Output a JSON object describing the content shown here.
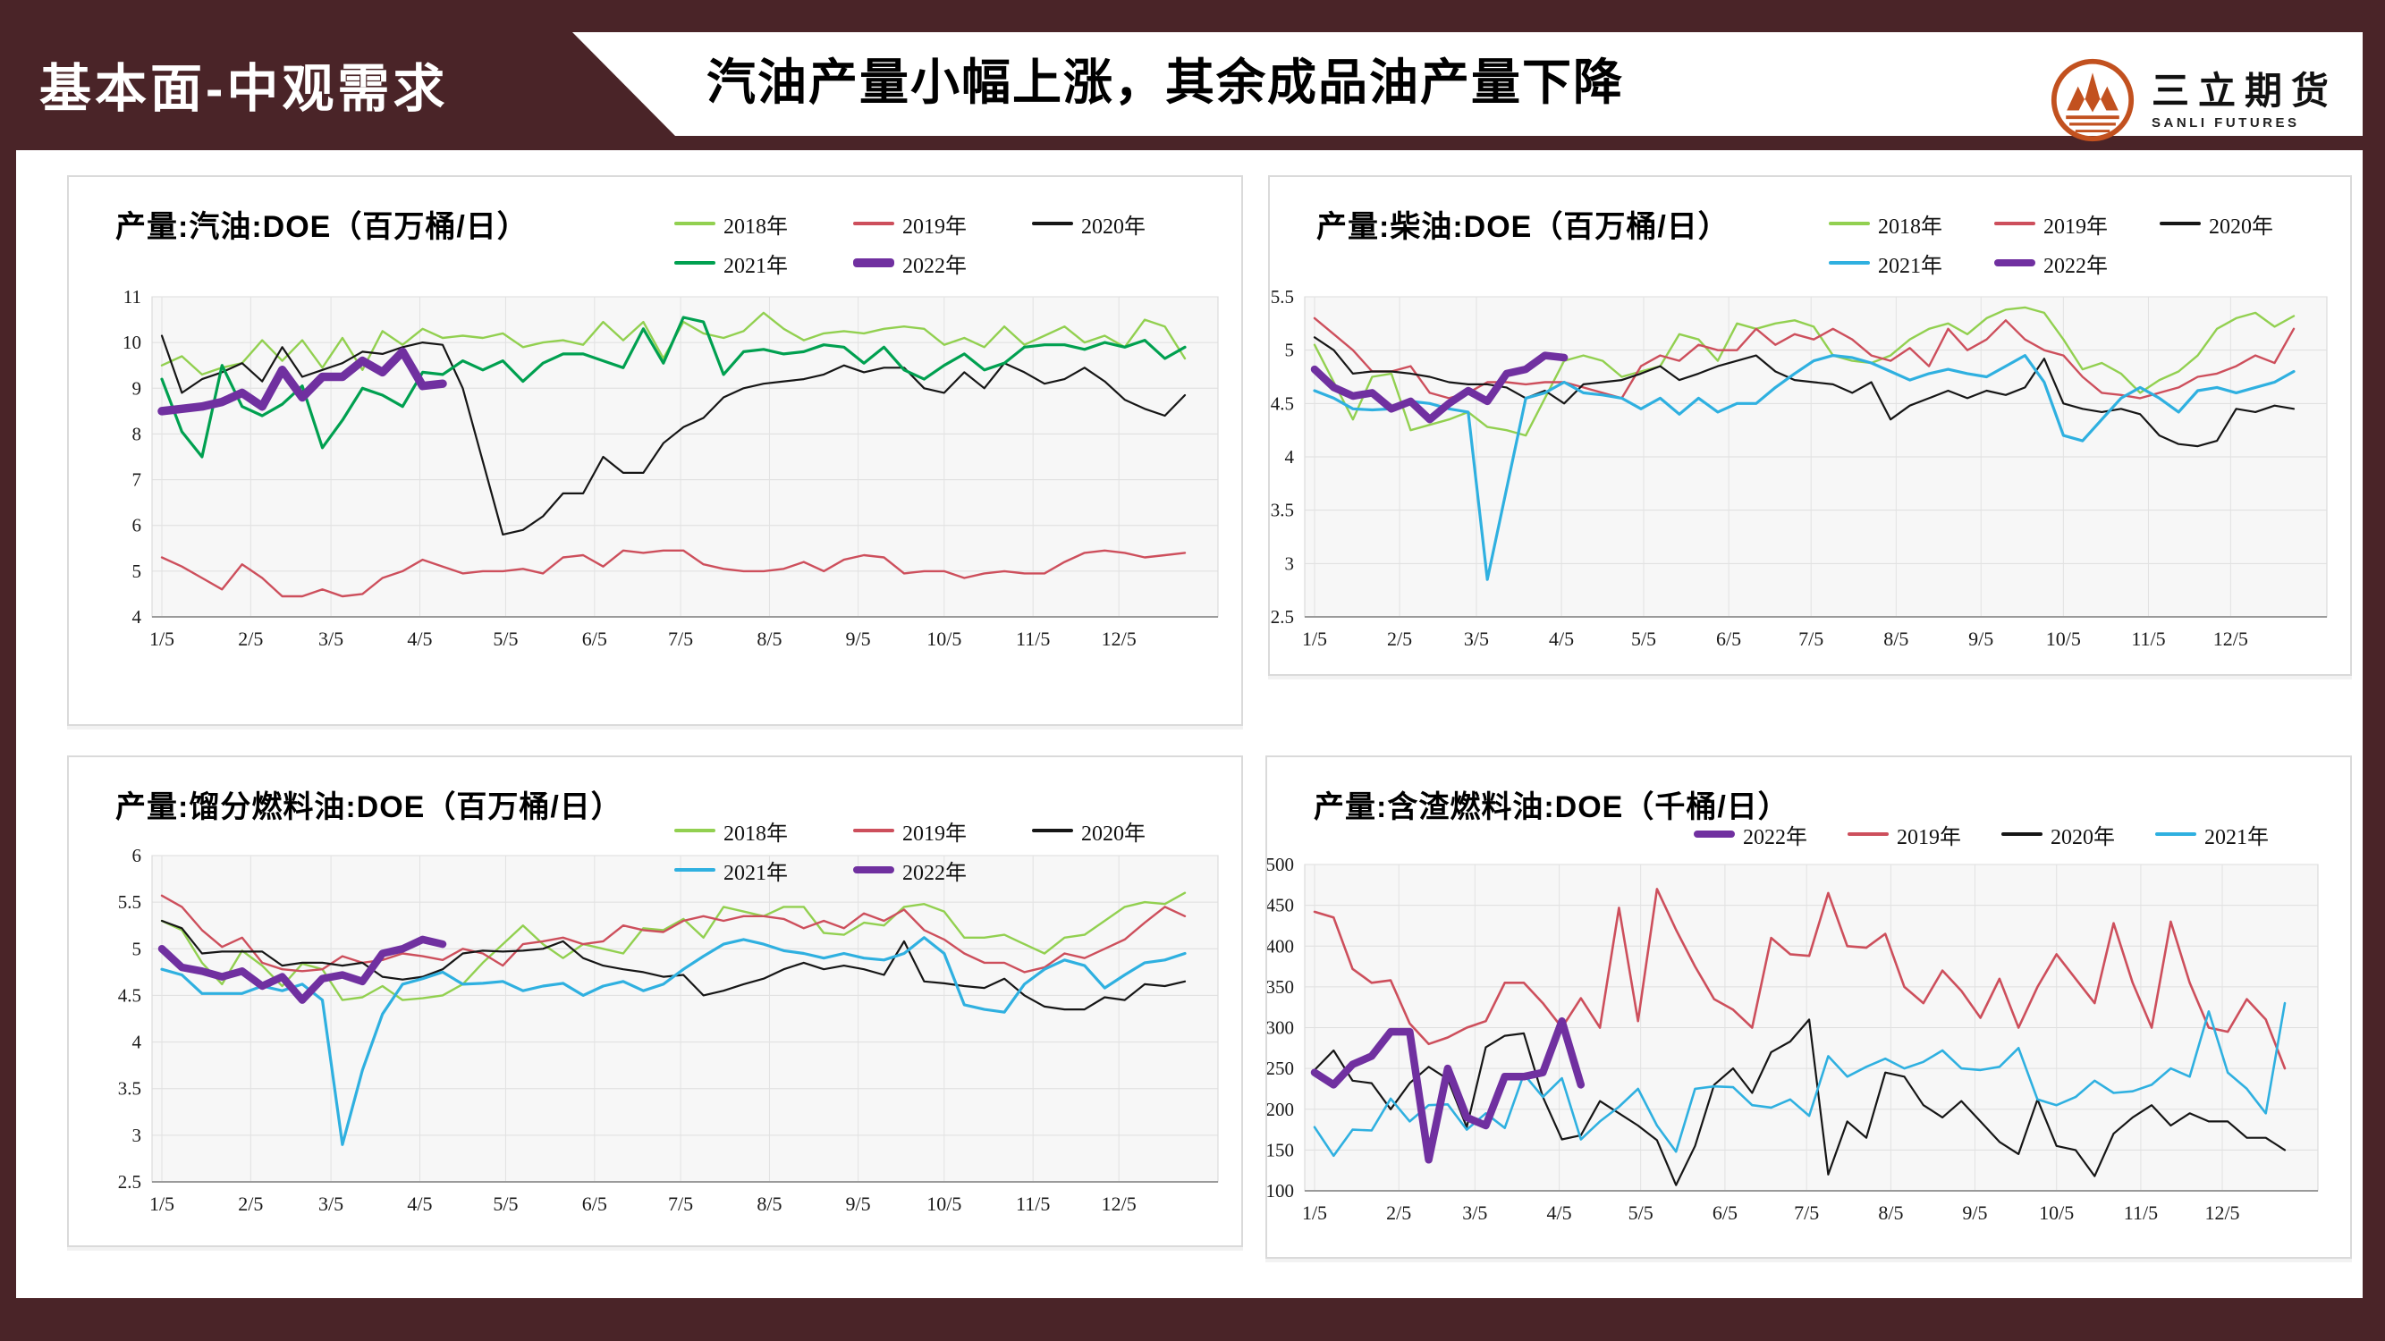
{
  "frame": {
    "color": "#4a2428"
  },
  "header": {
    "section_label": "基本面-中观需求",
    "title": "汽油产量小幅上涨，其余成品油产量下降",
    "logo": {
      "name_cn": "三立期货",
      "name_en": "SANLI FUTURES",
      "color": "#c2511f"
    }
  },
  "chart_data": [
    {
      "type": "line",
      "title": "产量:汽油:DOE（百万桶/日）",
      "y_min": 4,
      "y_max": 11,
      "y_step": 1,
      "grid": true,
      "legend_position": "top-right",
      "x_labels": [
        "1/5",
        "2/5",
        "3/5",
        "4/5",
        "5/5",
        "6/5",
        "7/5",
        "8/5",
        "9/5",
        "10/5",
        "11/5",
        "12/5"
      ],
      "legend_rows": [
        [
          "2018年",
          "2019年",
          "2020年"
        ],
        [
          "2021年",
          "2022年"
        ]
      ],
      "series": [
        {
          "name": "2018年",
          "color": "#92d050",
          "width": 2.4,
          "values": [
            9.5,
            9.7,
            9.3,
            9.45,
            9.55,
            10.05,
            9.6,
            10.05,
            9.45,
            10.1,
            9.4,
            10.25,
            9.95,
            10.3,
            10.1,
            10.15,
            10.1,
            10.2,
            9.9,
            10.0,
            10.05,
            9.95,
            10.45,
            10.05,
            10.45,
            9.65,
            10.45,
            10.2,
            10.1,
            10.25,
            10.65,
            10.3,
            10.05,
            10.2,
            10.25,
            10.2,
            10.3,
            10.35,
            10.3,
            9.95,
            10.1,
            9.9,
            10.35,
            9.95,
            10.15,
            10.35,
            10.0,
            10.15,
            9.9,
            10.5,
            10.35,
            9.65
          ]
        },
        {
          "name": "2019年",
          "color": "#cd4f5c",
          "width": 2.4,
          "values": [
            5.3,
            5.1,
            4.85,
            4.6,
            5.15,
            4.85,
            4.45,
            4.45,
            4.6,
            4.45,
            4.5,
            4.85,
            5.0,
            5.25,
            5.1,
            4.95,
            5.0,
            5.0,
            5.05,
            4.95,
            5.3,
            5.35,
            5.1,
            5.45,
            5.4,
            5.45,
            5.45,
            5.15,
            5.05,
            5.0,
            5.0,
            5.05,
            5.2,
            5.0,
            5.25,
            5.35,
            5.3,
            4.95,
            5.0,
            5.0,
            4.85,
            4.95,
            5.0,
            4.95,
            4.95,
            5.2,
            5.4,
            5.45,
            5.4,
            5.3,
            5.35,
            5.4
          ]
        },
        {
          "name": "2020年",
          "color": "#161616",
          "width": 2.2,
          "values": [
            10.15,
            8.9,
            9.2,
            9.35,
            9.55,
            9.15,
            9.9,
            9.25,
            9.4,
            9.55,
            9.8,
            9.75,
            9.9,
            10.0,
            9.95,
            9.0,
            7.4,
            5.8,
            5.9,
            6.2,
            6.7,
            6.7,
            7.5,
            7.15,
            7.15,
            7.8,
            8.15,
            8.35,
            8.8,
            9.0,
            9.1,
            9.15,
            9.2,
            9.3,
            9.5,
            9.35,
            9.45,
            9.45,
            9.0,
            8.9,
            9.35,
            9.0,
            9.55,
            9.35,
            9.1,
            9.2,
            9.45,
            9.15,
            8.75,
            8.55,
            8.4,
            8.85
          ]
        },
        {
          "name": "2021年",
          "color": "#00a050",
          "width": 3.2,
          "values": [
            9.2,
            8.05,
            7.5,
            9.5,
            8.6,
            8.4,
            8.65,
            9.05,
            7.7,
            8.3,
            9.0,
            8.85,
            8.6,
            9.35,
            9.3,
            9.6,
            9.4,
            9.6,
            9.15,
            9.55,
            9.75,
            9.75,
            9.6,
            9.45,
            10.3,
            9.55,
            10.55,
            10.45,
            9.3,
            9.8,
            9.85,
            9.75,
            9.8,
            9.95,
            9.9,
            9.55,
            9.9,
            9.4,
            9.2,
            9.5,
            9.75,
            9.4,
            9.55,
            9.9,
            9.95,
            9.95,
            9.85,
            10.0,
            9.9,
            10.05,
            9.65,
            9.9
          ]
        },
        {
          "name": "2022年",
          "color": "#7030a0",
          "width": 9.5,
          "values": [
            8.5,
            8.55,
            8.6,
            8.7,
            8.9,
            8.6,
            9.4,
            8.8,
            9.25,
            9.25,
            9.6,
            9.35,
            9.8,
            9.05,
            9.1
          ]
        }
      ]
    },
    {
      "type": "line",
      "title": "产量:柴油:DOE（百万桶/日）",
      "y_min": 2.5,
      "y_max": 5.5,
      "y_step": 0.5,
      "grid": true,
      "legend_position": "top-right",
      "x_labels": [
        "1/5",
        "2/5",
        "3/5",
        "4/5",
        "5/5",
        "6/5",
        "7/5",
        "8/5",
        "9/5",
        "10/5",
        "11/5",
        "12/5"
      ],
      "legend_rows": [
        [
          "2018年",
          "2019年",
          "2020年"
        ],
        [
          "2021年",
          "2022年"
        ]
      ],
      "series": [
        {
          "name": "2018年",
          "color": "#92d050",
          "width": 2.4,
          "values": [
            5.05,
            4.7,
            4.35,
            4.75,
            4.78,
            4.25,
            4.3,
            4.35,
            4.42,
            4.28,
            4.25,
            4.2,
            4.55,
            4.9,
            4.95,
            4.9,
            4.75,
            4.8,
            4.85,
            5.15,
            5.1,
            4.9,
            5.25,
            5.2,
            5.25,
            5.28,
            5.22,
            4.95,
            4.9,
            4.88,
            4.95,
            5.1,
            5.2,
            5.25,
            5.15,
            5.3,
            5.38,
            5.4,
            5.35,
            5.1,
            4.82,
            4.88,
            4.78,
            4.6,
            4.72,
            4.8,
            4.95,
            5.2,
            5.3,
            5.35,
            5.22,
            5.32
          ]
        },
        {
          "name": "2019年",
          "color": "#cd4f5c",
          "width": 2.4,
          "values": [
            5.3,
            5.15,
            5.0,
            4.8,
            4.8,
            4.85,
            4.6,
            4.55,
            4.6,
            4.7,
            4.7,
            4.68,
            4.7,
            4.7,
            4.65,
            4.6,
            4.55,
            4.85,
            4.95,
            4.9,
            5.05,
            5.0,
            5.0,
            5.2,
            5.05,
            5.15,
            5.1,
            5.2,
            5.1,
            4.95,
            4.9,
            5.02,
            4.85,
            5.2,
            5.0,
            5.1,
            5.28,
            5.1,
            5.0,
            4.95,
            4.75,
            4.6,
            4.58,
            4.55,
            4.6,
            4.65,
            4.75,
            4.78,
            4.85,
            4.95,
            4.88,
            5.2
          ]
        },
        {
          "name": "2020年",
          "color": "#161616",
          "width": 2.2,
          "values": [
            5.12,
            5.0,
            4.78,
            4.8,
            4.8,
            4.78,
            4.75,
            4.7,
            4.68,
            4.68,
            4.65,
            4.55,
            4.62,
            4.5,
            4.68,
            4.7,
            4.72,
            4.78,
            4.85,
            4.72,
            4.78,
            4.85,
            4.9,
            4.95,
            4.8,
            4.72,
            4.7,
            4.68,
            4.6,
            4.7,
            4.35,
            4.48,
            4.55,
            4.62,
            4.55,
            4.62,
            4.58,
            4.65,
            4.92,
            4.5,
            4.45,
            4.42,
            4.45,
            4.4,
            4.2,
            4.12,
            4.1,
            4.15,
            4.45,
            4.42,
            4.48,
            4.45
          ]
        },
        {
          "name": "2021年",
          "color": "#2fb0e0",
          "width": 3.2,
          "values": [
            4.62,
            4.55,
            4.45,
            4.44,
            4.45,
            4.52,
            4.5,
            4.45,
            4.42,
            2.85,
            3.7,
            4.55,
            4.6,
            4.7,
            4.6,
            4.58,
            4.55,
            4.45,
            4.55,
            4.4,
            4.55,
            4.42,
            4.5,
            4.5,
            4.65,
            4.78,
            4.9,
            4.95,
            4.93,
            4.88,
            4.8,
            4.72,
            4.78,
            4.82,
            4.78,
            4.75,
            4.85,
            4.95,
            4.7,
            4.2,
            4.15,
            4.35,
            4.55,
            4.65,
            4.55,
            4.42,
            4.62,
            4.65,
            4.6,
            4.65,
            4.7,
            4.8
          ]
        },
        {
          "name": "2022年",
          "color": "#7030a0",
          "width": 8.5,
          "values": [
            4.82,
            4.65,
            4.57,
            4.6,
            4.45,
            4.52,
            4.35,
            4.5,
            4.62,
            4.52,
            4.78,
            4.82,
            4.95,
            4.93
          ]
        }
      ]
    },
    {
      "type": "line",
      "title": "产量:馏分燃料油:DOE（百万桶/日）",
      "y_min": 2.5,
      "y_max": 6,
      "y_step": 0.5,
      "grid": true,
      "legend_position": "top-right",
      "x_labels": [
        "1/5",
        "2/5",
        "3/5",
        "4/5",
        "5/5",
        "6/5",
        "7/5",
        "8/5",
        "9/5",
        "10/5",
        "11/5",
        "12/5"
      ],
      "legend_rows": [
        [
          "2018年",
          "2019年",
          "2020年"
        ],
        [
          "2021年",
          "2022年"
        ]
      ],
      "series": [
        {
          "name": "2018年",
          "color": "#92d050",
          "width": 2.4,
          "values": [
            5.3,
            5.2,
            4.85,
            4.62,
            4.98,
            4.82,
            4.6,
            4.84,
            4.78,
            4.45,
            4.48,
            4.6,
            4.45,
            4.47,
            4.5,
            4.62,
            4.85,
            5.05,
            5.25,
            5.05,
            4.9,
            5.05,
            5.0,
            4.95,
            5.22,
            5.2,
            5.32,
            5.12,
            5.45,
            5.4,
            5.35,
            5.45,
            5.45,
            5.17,
            5.15,
            5.28,
            5.25,
            5.45,
            5.48,
            5.4,
            5.12,
            5.12,
            5.15,
            5.05,
            4.95,
            5.12,
            5.15,
            5.3,
            5.45,
            5.5,
            5.48,
            5.6
          ]
        },
        {
          "name": "2019年",
          "color": "#cd4f5c",
          "width": 2.4,
          "values": [
            5.57,
            5.45,
            5.2,
            5.02,
            5.12,
            4.85,
            4.78,
            4.76,
            4.78,
            4.92,
            4.85,
            4.88,
            4.95,
            4.92,
            4.88,
            5.0,
            4.95,
            4.82,
            5.05,
            5.08,
            5.12,
            5.05,
            5.08,
            5.25,
            5.2,
            5.18,
            5.3,
            5.35,
            5.3,
            5.35,
            5.35,
            5.32,
            5.22,
            5.3,
            5.22,
            5.38,
            5.3,
            5.42,
            5.2,
            5.1,
            4.95,
            4.85,
            4.85,
            4.75,
            4.8,
            4.95,
            4.9,
            5.0,
            5.1,
            5.28,
            5.45,
            5.35
          ]
        },
        {
          "name": "2020年",
          "color": "#161616",
          "width": 2.2,
          "values": [
            5.3,
            5.22,
            4.95,
            4.97,
            4.97,
            4.97,
            4.82,
            4.85,
            4.85,
            4.82,
            4.85,
            4.7,
            4.67,
            4.7,
            4.78,
            4.95,
            4.98,
            4.97,
            4.98,
            5.0,
            5.08,
            4.9,
            4.82,
            4.78,
            4.75,
            4.7,
            4.72,
            4.5,
            4.55,
            4.62,
            4.68,
            4.78,
            4.85,
            4.78,
            4.82,
            4.78,
            4.72,
            5.08,
            4.65,
            4.63,
            4.6,
            4.58,
            4.68,
            4.5,
            4.38,
            4.35,
            4.35,
            4.48,
            4.45,
            4.62,
            4.6,
            4.65
          ]
        },
        {
          "name": "2021年",
          "color": "#2fb0e0",
          "width": 3.2,
          "values": [
            4.78,
            4.72,
            4.52,
            4.52,
            4.52,
            4.6,
            4.55,
            4.62,
            4.45,
            2.9,
            3.7,
            4.3,
            4.62,
            4.68,
            4.75,
            4.62,
            4.63,
            4.65,
            4.55,
            4.6,
            4.63,
            4.5,
            4.6,
            4.65,
            4.55,
            4.62,
            4.78,
            4.92,
            5.05,
            5.1,
            5.05,
            4.98,
            4.95,
            4.9,
            4.95,
            4.9,
            4.88,
            4.95,
            5.12,
            4.95,
            4.4,
            4.35,
            4.32,
            4.62,
            4.78,
            4.88,
            4.82,
            4.58,
            4.72,
            4.85,
            4.88,
            4.95
          ]
        },
        {
          "name": "2022年",
          "color": "#7030a0",
          "width": 8.5,
          "values": [
            5.0,
            4.8,
            4.76,
            4.7,
            4.76,
            4.6,
            4.7,
            4.45,
            4.68,
            4.72,
            4.65,
            4.95,
            5.0,
            5.1,
            5.05
          ]
        }
      ]
    },
    {
      "type": "line",
      "title": "产量:含渣燃料油:DOE（千桶/日）",
      "y_min": 100,
      "y_max": 500,
      "y_step": 50,
      "grid": true,
      "legend_position": "top-right",
      "x_labels": [
        "1/5",
        "2/5",
        "3/5",
        "4/5",
        "5/5",
        "6/5",
        "7/5",
        "8/5",
        "9/5",
        "10/5",
        "11/5",
        "12/5"
      ],
      "legend_rows": [
        [
          "2022年",
          "2019年",
          "2020年",
          "2021年"
        ]
      ],
      "series": [
        {
          "name": "2019年",
          "color": "#cd4f5c",
          "width": 2.6,
          "values": [
            442,
            435,
            372,
            355,
            358,
            305,
            280,
            288,
            300,
            308,
            355,
            355,
            330,
            300,
            336,
            300,
            447,
            308,
            470,
            420,
            375,
            335,
            322,
            300,
            410,
            390,
            388,
            465,
            400,
            398,
            415,
            350,
            330,
            370,
            345,
            312,
            360,
            300,
            350,
            390,
            360,
            330,
            428,
            355,
            300,
            430,
            355,
            300,
            295,
            335,
            310,
            250
          ]
        },
        {
          "name": "2020年",
          "color": "#161616",
          "width": 2.2,
          "values": [
            248,
            272,
            235,
            232,
            200,
            232,
            252,
            237,
            178,
            276,
            290,
            293,
            215,
            163,
            168,
            210,
            195,
            180,
            162,
            107,
            155,
            230,
            250,
            220,
            270,
            283,
            310,
            120,
            185,
            165,
            245,
            240,
            205,
            190,
            210,
            185,
            160,
            145,
            212,
            155,
            150,
            118,
            170,
            190,
            205,
            180,
            195,
            185,
            185,
            165,
            165,
            150
          ]
        },
        {
          "name": "2021年",
          "color": "#2fb0e0",
          "width": 2.6,
          "values": [
            178,
            143,
            175,
            174,
            213,
            185,
            205,
            206,
            175,
            195,
            177,
            243,
            215,
            238,
            163,
            185,
            203,
            225,
            180,
            148,
            225,
            228,
            227,
            205,
            202,
            212,
            192,
            265,
            240,
            252,
            262,
            250,
            258,
            272,
            250,
            248,
            252,
            275,
            212,
            205,
            215,
            235,
            220,
            222,
            230,
            250,
            240,
            320,
            245,
            225,
            195,
            330
          ]
        },
        {
          "name": "2022年",
          "color": "#7030a0",
          "width": 8.5,
          "values": [
            245,
            230,
            255,
            265,
            295,
            295,
            138,
            250,
            190,
            180,
            240,
            240,
            245,
            308,
            230
          ]
        }
      ]
    }
  ]
}
